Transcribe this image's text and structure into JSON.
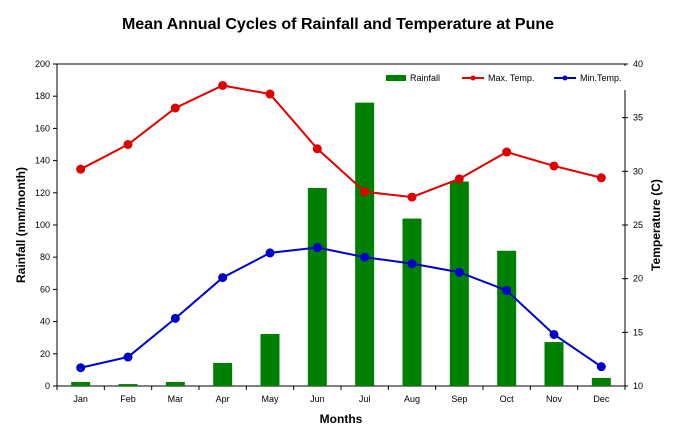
{
  "chart_data": {
    "type": "bar+line",
    "title": "Mean Annual Cycles of Rainfall and Temperature at Pune",
    "xlabel": "Months",
    "ylabel": "Rainfall (mm/month)",
    "y2label": "Temperature (C)",
    "categories": [
      "Jan",
      "Feb",
      "Mar",
      "Apr",
      "May",
      "Jun",
      "Jul",
      "Aug",
      "Sep",
      "Oct",
      "Nov",
      "Dec"
    ],
    "ylim": [
      0,
      200
    ],
    "yticks": [
      0,
      20,
      40,
      60,
      80,
      100,
      120,
      140,
      160,
      180,
      200
    ],
    "y2lim": [
      10,
      40
    ],
    "y2ticks": [
      10,
      15,
      20,
      25,
      30,
      35,
      40
    ],
    "grid": false,
    "legend_position": "top-right",
    "series": [
      {
        "name": "Rainfall",
        "type": "bar",
        "axis": "left",
        "color": "#008000",
        "values": [
          2.5,
          1.2,
          2.5,
          14.3,
          32.3,
          123,
          176,
          104,
          127,
          84,
          27.3,
          5.0
        ]
      },
      {
        "name": "Max. Temp.",
        "type": "line",
        "axis": "right",
        "color": "#e00000",
        "values": [
          30.2,
          32.5,
          35.9,
          38.0,
          37.2,
          32.1,
          28.1,
          27.6,
          29.3,
          31.8,
          30.5,
          29.4
        ]
      },
      {
        "name": "Min.Temp.",
        "type": "line",
        "axis": "right",
        "color": "#0000cc",
        "values": [
          11.7,
          12.7,
          16.3,
          20.1,
          22.4,
          22.9,
          22.0,
          21.4,
          20.6,
          18.9,
          14.8,
          11.8
        ]
      }
    ]
  }
}
